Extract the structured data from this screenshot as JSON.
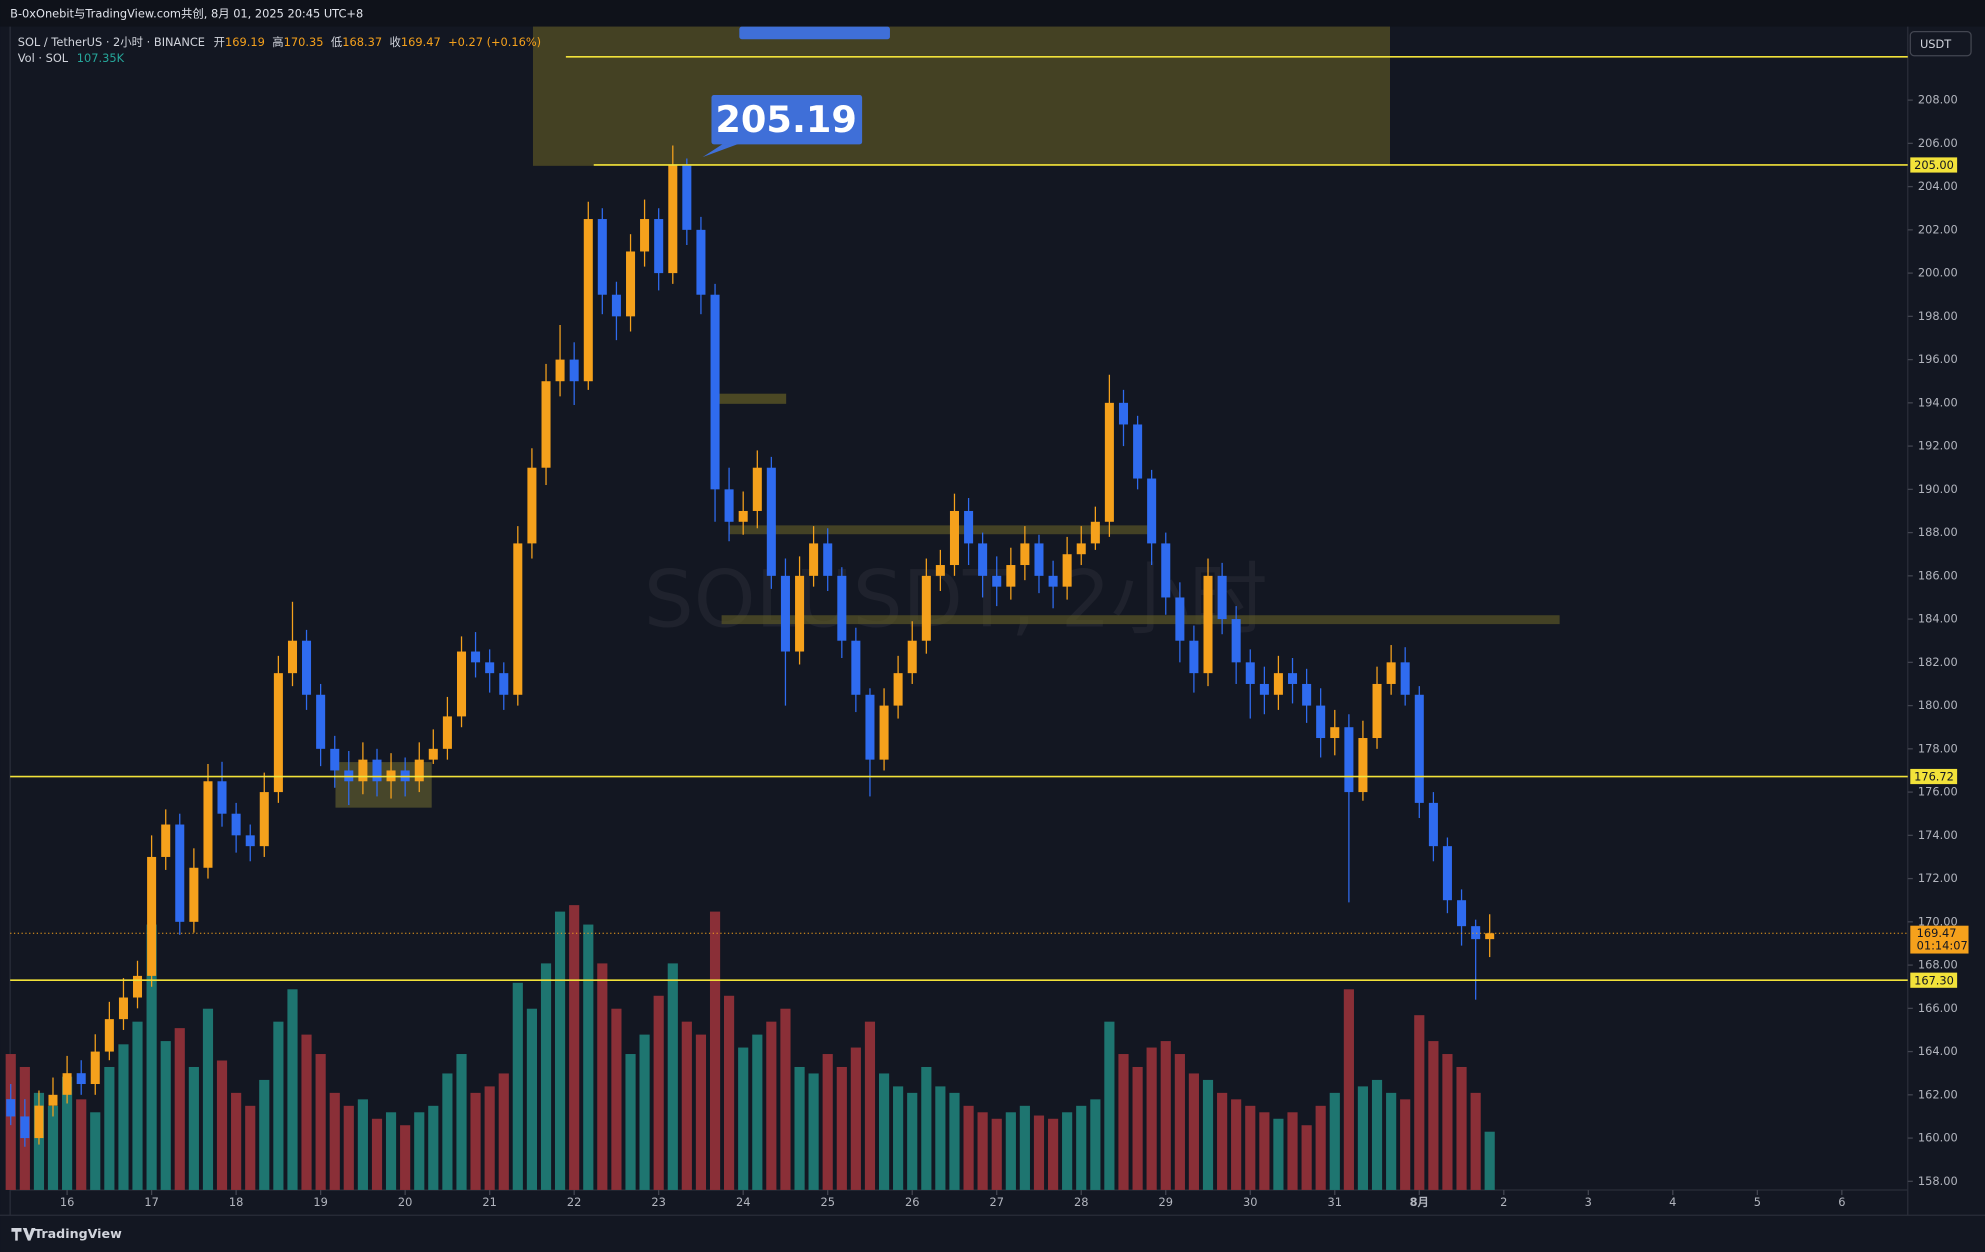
{
  "chart_data": {
    "type": "candlestick",
    "title": "B-0xOnebit与TradingView.com共创, 8月 01, 2025 20:45 UTC+8",
    "symbol": "SOL / TetherUS · 2小时 · BINANCE",
    "ohlc_legend": [
      {
        "label": "开",
        "value": 169.19
      },
      {
        "label": "高",
        "value": 170.35
      },
      {
        "label": "低",
        "value": 168.37
      },
      {
        "label": "收",
        "value": 169.47
      }
    ],
    "change_label": "+0.27 (+0.16%)",
    "volume_label": "Vol · SOL",
    "volume_value_label": "107.35K",
    "watermark": "SOLUSDT, 2小时",
    "currency": "USDT",
    "brand": "TradingView",
    "annotations": [
      {
        "value": 205.19,
        "label": "205.19"
      }
    ],
    "horizontal_lines": [
      {
        "value": 210.0
      },
      {
        "value": 205.0,
        "label": "205.00"
      },
      {
        "value": 176.72,
        "label": "176.72"
      },
      {
        "value": 167.3,
        "label": "167.30"
      }
    ],
    "last_price": {
      "value": 169.47,
      "label": "169.47",
      "countdown": "01:14:07"
    },
    "up_color": "#f5a11c",
    "down_color": "#2f6bef",
    "volume_up_color": "#1e7570",
    "volume_down_color": "#8a2f37",
    "line_color": "#f2e23a",
    "grid": false,
    "xlim": [
      15.326,
      37.78
    ],
    "xticks": [
      16,
      17,
      18,
      19,
      20,
      21,
      22,
      23,
      24,
      25,
      26,
      27,
      28,
      29,
      30,
      31,
      {
        "value": 32,
        "label": "8月"
      },
      {
        "value": 33,
        "label": "2"
      },
      {
        "value": 34,
        "label": "3"
      },
      {
        "value": 35,
        "label": "4"
      },
      {
        "value": 36,
        "label": "5"
      },
      {
        "value": 37,
        "label": "6"
      }
    ],
    "ylim": [
      157.6,
      211.4
    ],
    "yticks": [
      {
        "value": 158,
        "label": "158.00"
      },
      {
        "value": 160,
        "label": "160.00"
      },
      {
        "value": 162,
        "label": "162.00"
      },
      {
        "value": 164,
        "label": "164.00"
      },
      {
        "value": 166,
        "label": "166.00"
      },
      {
        "value": 168,
        "label": "168.00"
      },
      {
        "value": 170,
        "label": "170.00"
      },
      {
        "value": 172,
        "label": "172.00"
      },
      {
        "value": 174,
        "label": "174.00"
      },
      {
        "value": 176,
        "label": "176.00"
      },
      {
        "value": 178,
        "label": "178.00"
      },
      {
        "value": 180,
        "label": "180.00"
      },
      {
        "value": 182,
        "label": "182.00"
      },
      {
        "value": 184,
        "label": "184.00"
      },
      {
        "value": 186,
        "label": "186.00"
      },
      {
        "value": 188,
        "label": "188.00"
      },
      {
        "value": 190,
        "label": "190.00"
      },
      {
        "value": 192,
        "label": "192.00"
      },
      {
        "value": 194,
        "label": "194.00"
      },
      {
        "value": 196,
        "label": "196.00"
      },
      {
        "value": 198,
        "label": "198.00"
      },
      {
        "value": 200,
        "label": "200.00"
      },
      {
        "value": 202,
        "label": "202.00"
      },
      {
        "value": 204,
        "label": "204.00"
      },
      {
        "value": 206,
        "label": "206.00"
      },
      {
        "value": 208,
        "label": "208.00"
      }
    ],
    "x": [
      15.333,
      15.5,
      15.667,
      15.833,
      16,
      16.167,
      16.333,
      16.5,
      16.667,
      16.833,
      17,
      17.167,
      17.333,
      17.5,
      17.667,
      17.833,
      18,
      18.167,
      18.333,
      18.5,
      18.667,
      18.833,
      19,
      19.167,
      19.333,
      19.5,
      19.667,
      19.833,
      20,
      20.167,
      20.333,
      20.5,
      20.667,
      20.833,
      21,
      21.167,
      21.333,
      21.5,
      21.667,
      21.833,
      22,
      22.167,
      22.333,
      22.5,
      22.667,
      22.833,
      23,
      23.167,
      23.333,
      23.5,
      23.667,
      23.833,
      24,
      24.167,
      24.333,
      24.5,
      24.667,
      24.833,
      25,
      25.167,
      25.333,
      25.5,
      25.667,
      25.833,
      26,
      26.167,
      26.333,
      26.5,
      26.667,
      26.833,
      27,
      27.167,
      27.333,
      27.5,
      27.667,
      27.833,
      28,
      28.167,
      28.333,
      28.5,
      28.667,
      28.833,
      29,
      29.167,
      29.333,
      29.5,
      29.667,
      29.833,
      30,
      30.167,
      30.333,
      30.5,
      30.667,
      30.833,
      31,
      31.167,
      31.333,
      31.5,
      31.667,
      31.833,
      32,
      32.167,
      32.333,
      32.5,
      32.667,
      32.833
    ],
    "open": [
      161.8,
      161.0,
      160.0,
      161.5,
      162.0,
      163,
      162.5,
      164,
      165.5,
      166.5,
      167.5,
      173,
      174.5,
      170,
      172.5,
      176.5,
      175,
      174,
      173.5,
      176,
      181.5,
      183,
      180.5,
      178,
      177,
      176.5,
      177.5,
      176.5,
      177,
      176.5,
      177.5,
      178,
      179.5,
      182.5,
      182,
      181.5,
      180.5,
      187.5,
      191,
      195,
      196,
      195,
      202.5,
      199,
      198,
      201,
      202.5,
      200,
      205,
      202,
      199,
      190,
      188.5,
      189,
      191,
      186,
      182.5,
      186,
      187.5,
      186,
      183,
      180.5,
      177.5,
      180,
      181.5,
      183,
      186,
      186.5,
      189,
      187.5,
      186,
      185.5,
      186.5,
      187.5,
      186,
      185.5,
      187,
      187.5,
      188.5,
      194,
      193,
      190.5,
      187.5,
      185,
      183,
      181.5,
      186,
      184,
      182,
      181,
      180.5,
      181.5,
      181,
      180,
      178.5,
      179,
      176,
      178.5,
      181,
      182,
      180.5,
      175.5,
      173.5,
      171,
      169.8,
      169.2
    ],
    "high": [
      162.5,
      161.8,
      162.2,
      162.8,
      163.8,
      163.6,
      164.8,
      166.3,
      167.4,
      168.2,
      174.0,
      175.2,
      175.0,
      173.4,
      177.3,
      177.4,
      175.5,
      174.5,
      176.9,
      182.3,
      184.8,
      183.5,
      181.0,
      178.6,
      177.9,
      178.3,
      178.0,
      177.8,
      177.6,
      178.3,
      178.9,
      180.4,
      183.2,
      183.4,
      182.6,
      182.0,
      188.3,
      191.9,
      195.8,
      197.6,
      196.8,
      203.3,
      203.0,
      199.6,
      201.8,
      203.4,
      203.0,
      205.9,
      205.3,
      202.6,
      199.5,
      191.0,
      189.9,
      191.8,
      191.5,
      186.8,
      186.9,
      188.3,
      188.2,
      186.4,
      183.6,
      180.8,
      180.8,
      182.3,
      183.9,
      186.8,
      187.2,
      189.8,
      189.6,
      188.0,
      186.9,
      187.3,
      188.3,
      187.9,
      186.7,
      187.8,
      188.3,
      189.2,
      195.3,
      194.6,
      193.4,
      190.9,
      188.0,
      185.7,
      183.7,
      186.8,
      186.6,
      184.6,
      182.6,
      181.8,
      182.3,
      182.2,
      181.7,
      180.8,
      179.8,
      179.6,
      179.3,
      181.8,
      182.8,
      182.7,
      180.9,
      176.0,
      173.9,
      171.5,
      170.1,
      170.35
    ],
    "low": [
      160.6,
      159.6,
      159.7,
      161.0,
      161.6,
      162.0,
      162.0,
      163.6,
      165.0,
      166.0,
      167.0,
      172.4,
      169.4,
      169.5,
      172.0,
      174.4,
      173.2,
      172.8,
      173.0,
      175.5,
      180.9,
      179.8,
      177.2,
      176.2,
      175.4,
      175.9,
      175.8,
      175.7,
      175.8,
      176.0,
      177.3,
      177.5,
      179.0,
      181.3,
      180.6,
      179.8,
      180.0,
      186.8,
      190.2,
      194.3,
      193.9,
      194.6,
      198.1,
      196.9,
      197.3,
      200.3,
      199.2,
      199.5,
      201.3,
      198.1,
      188.5,
      187.6,
      187.9,
      188.2,
      185.4,
      180.0,
      181.9,
      185.5,
      185.3,
      182.2,
      179.7,
      175.8,
      177.0,
      179.4,
      181.0,
      182.4,
      185.3,
      186.0,
      186.5,
      185.0,
      184.6,
      184.9,
      185.8,
      185.2,
      184.5,
      184.9,
      186.5,
      187.2,
      187.8,
      192.0,
      190.0,
      186.5,
      184.2,
      182.0,
      180.6,
      180.9,
      183.3,
      181.0,
      179.4,
      179.6,
      179.8,
      180.1,
      179.2,
      177.6,
      177.7,
      170.9,
      175.6,
      178.0,
      180.5,
      180.0,
      174.8,
      172.8,
      170.4,
      168.9,
      166.4,
      168.37
    ],
    "close": [
      161.0,
      160.0,
      161.5,
      162.0,
      163,
      162.5,
      164,
      165.5,
      166.5,
      167.5,
      173,
      174.5,
      170,
      172.5,
      176.5,
      175,
      174,
      173.5,
      176,
      181.5,
      183,
      180.5,
      178,
      177,
      176.5,
      177.5,
      176.5,
      177,
      176.5,
      177.5,
      178,
      179.5,
      182.5,
      182,
      181.5,
      180.5,
      187.5,
      191,
      195,
      196,
      195,
      202.5,
      199,
      198,
      201,
      202.5,
      200,
      205,
      202,
      199,
      190,
      188.5,
      189,
      191,
      186,
      182.5,
      186,
      187.5,
      186,
      183,
      180.5,
      177.5,
      180,
      181.5,
      183,
      186,
      186.5,
      189,
      187.5,
      186,
      185.5,
      186.5,
      187.5,
      186,
      185.5,
      187,
      187.5,
      188.5,
      194,
      193,
      190.5,
      187.5,
      185,
      183,
      181.5,
      186,
      184,
      182,
      181,
      180.5,
      181.5,
      181,
      180,
      178.5,
      179,
      176,
      178.5,
      181,
      182,
      180.5,
      175.5,
      173.5,
      171,
      169.8,
      169.2,
      169.47
    ],
    "volume": [
      420,
      380,
      300,
      260,
      350,
      280,
      240,
      380,
      450,
      520,
      820,
      460,
      500,
      380,
      560,
      400,
      300,
      260,
      340,
      520,
      620,
      480,
      420,
      300,
      260,
      280,
      220,
      240,
      200,
      240,
      260,
      360,
      420,
      300,
      320,
      360,
      640,
      560,
      700,
      860,
      880,
      820,
      700,
      560,
      420,
      480,
      600,
      700,
      520,
      480,
      860,
      600,
      440,
      480,
      520,
      560,
      380,
      360,
      420,
      380,
      440,
      520,
      360,
      320,
      300,
      380,
      320,
      300,
      260,
      240,
      220,
      240,
      260,
      230,
      220,
      240,
      260,
      280,
      520,
      420,
      380,
      440,
      460,
      420,
      360,
      340,
      300,
      280,
      260,
      240,
      220,
      240,
      200,
      260,
      300,
      620,
      320,
      340,
      300,
      280,
      540,
      460,
      420,
      380,
      300,
      180
    ]
  }
}
